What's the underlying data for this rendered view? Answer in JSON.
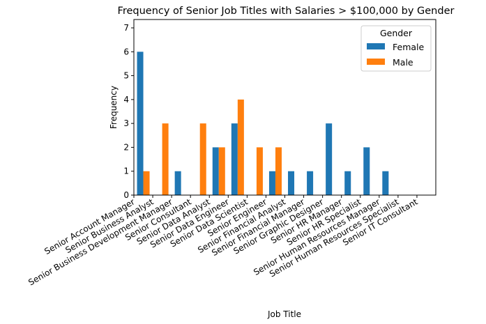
{
  "chart_data": {
    "type": "bar",
    "title": "Frequency of Senior Job Titles with Salaries > $100,000 by Gender",
    "xlabel": "Job Title",
    "ylabel": "Frequency",
    "ylim": [
      0,
      7.35
    ],
    "yticks": [
      0,
      1,
      2,
      3,
      4,
      5,
      6,
      7
    ],
    "grid": false,
    "legend": {
      "title": "Gender",
      "placement": "top-right"
    },
    "categories": [
      "Senior Account Manager",
      "Senior Business Analyst",
      "Senior Business Development Manager",
      "Senior Consultant",
      "Senior Data Analyst",
      "Senior Data Engineer",
      "Senior Data Scientist",
      "Senior Engineer",
      "Senior Financial Analyst",
      "Senior Financial Manager",
      "Senior Graphic Designer",
      "Senior HR Manager",
      "Senior HR Specialist",
      "Senior Human Resources Manager",
      "Senior Human Resources Specialist",
      "Senior IT Consultant"
    ],
    "series": [
      {
        "name": "Female",
        "color": "#1f77b4",
        "values": [
          6,
          0,
          1,
          0,
          2,
          3,
          0,
          1,
          1,
          1,
          3,
          1,
          2,
          1,
          0,
          0
        ]
      },
      {
        "name": "Male",
        "color": "#ff7f0e",
        "values": [
          1,
          3,
          0,
          3,
          2,
          4,
          2,
          2,
          0,
          0,
          0,
          0,
          0,
          0,
          0,
          0
        ]
      }
    ]
  }
}
